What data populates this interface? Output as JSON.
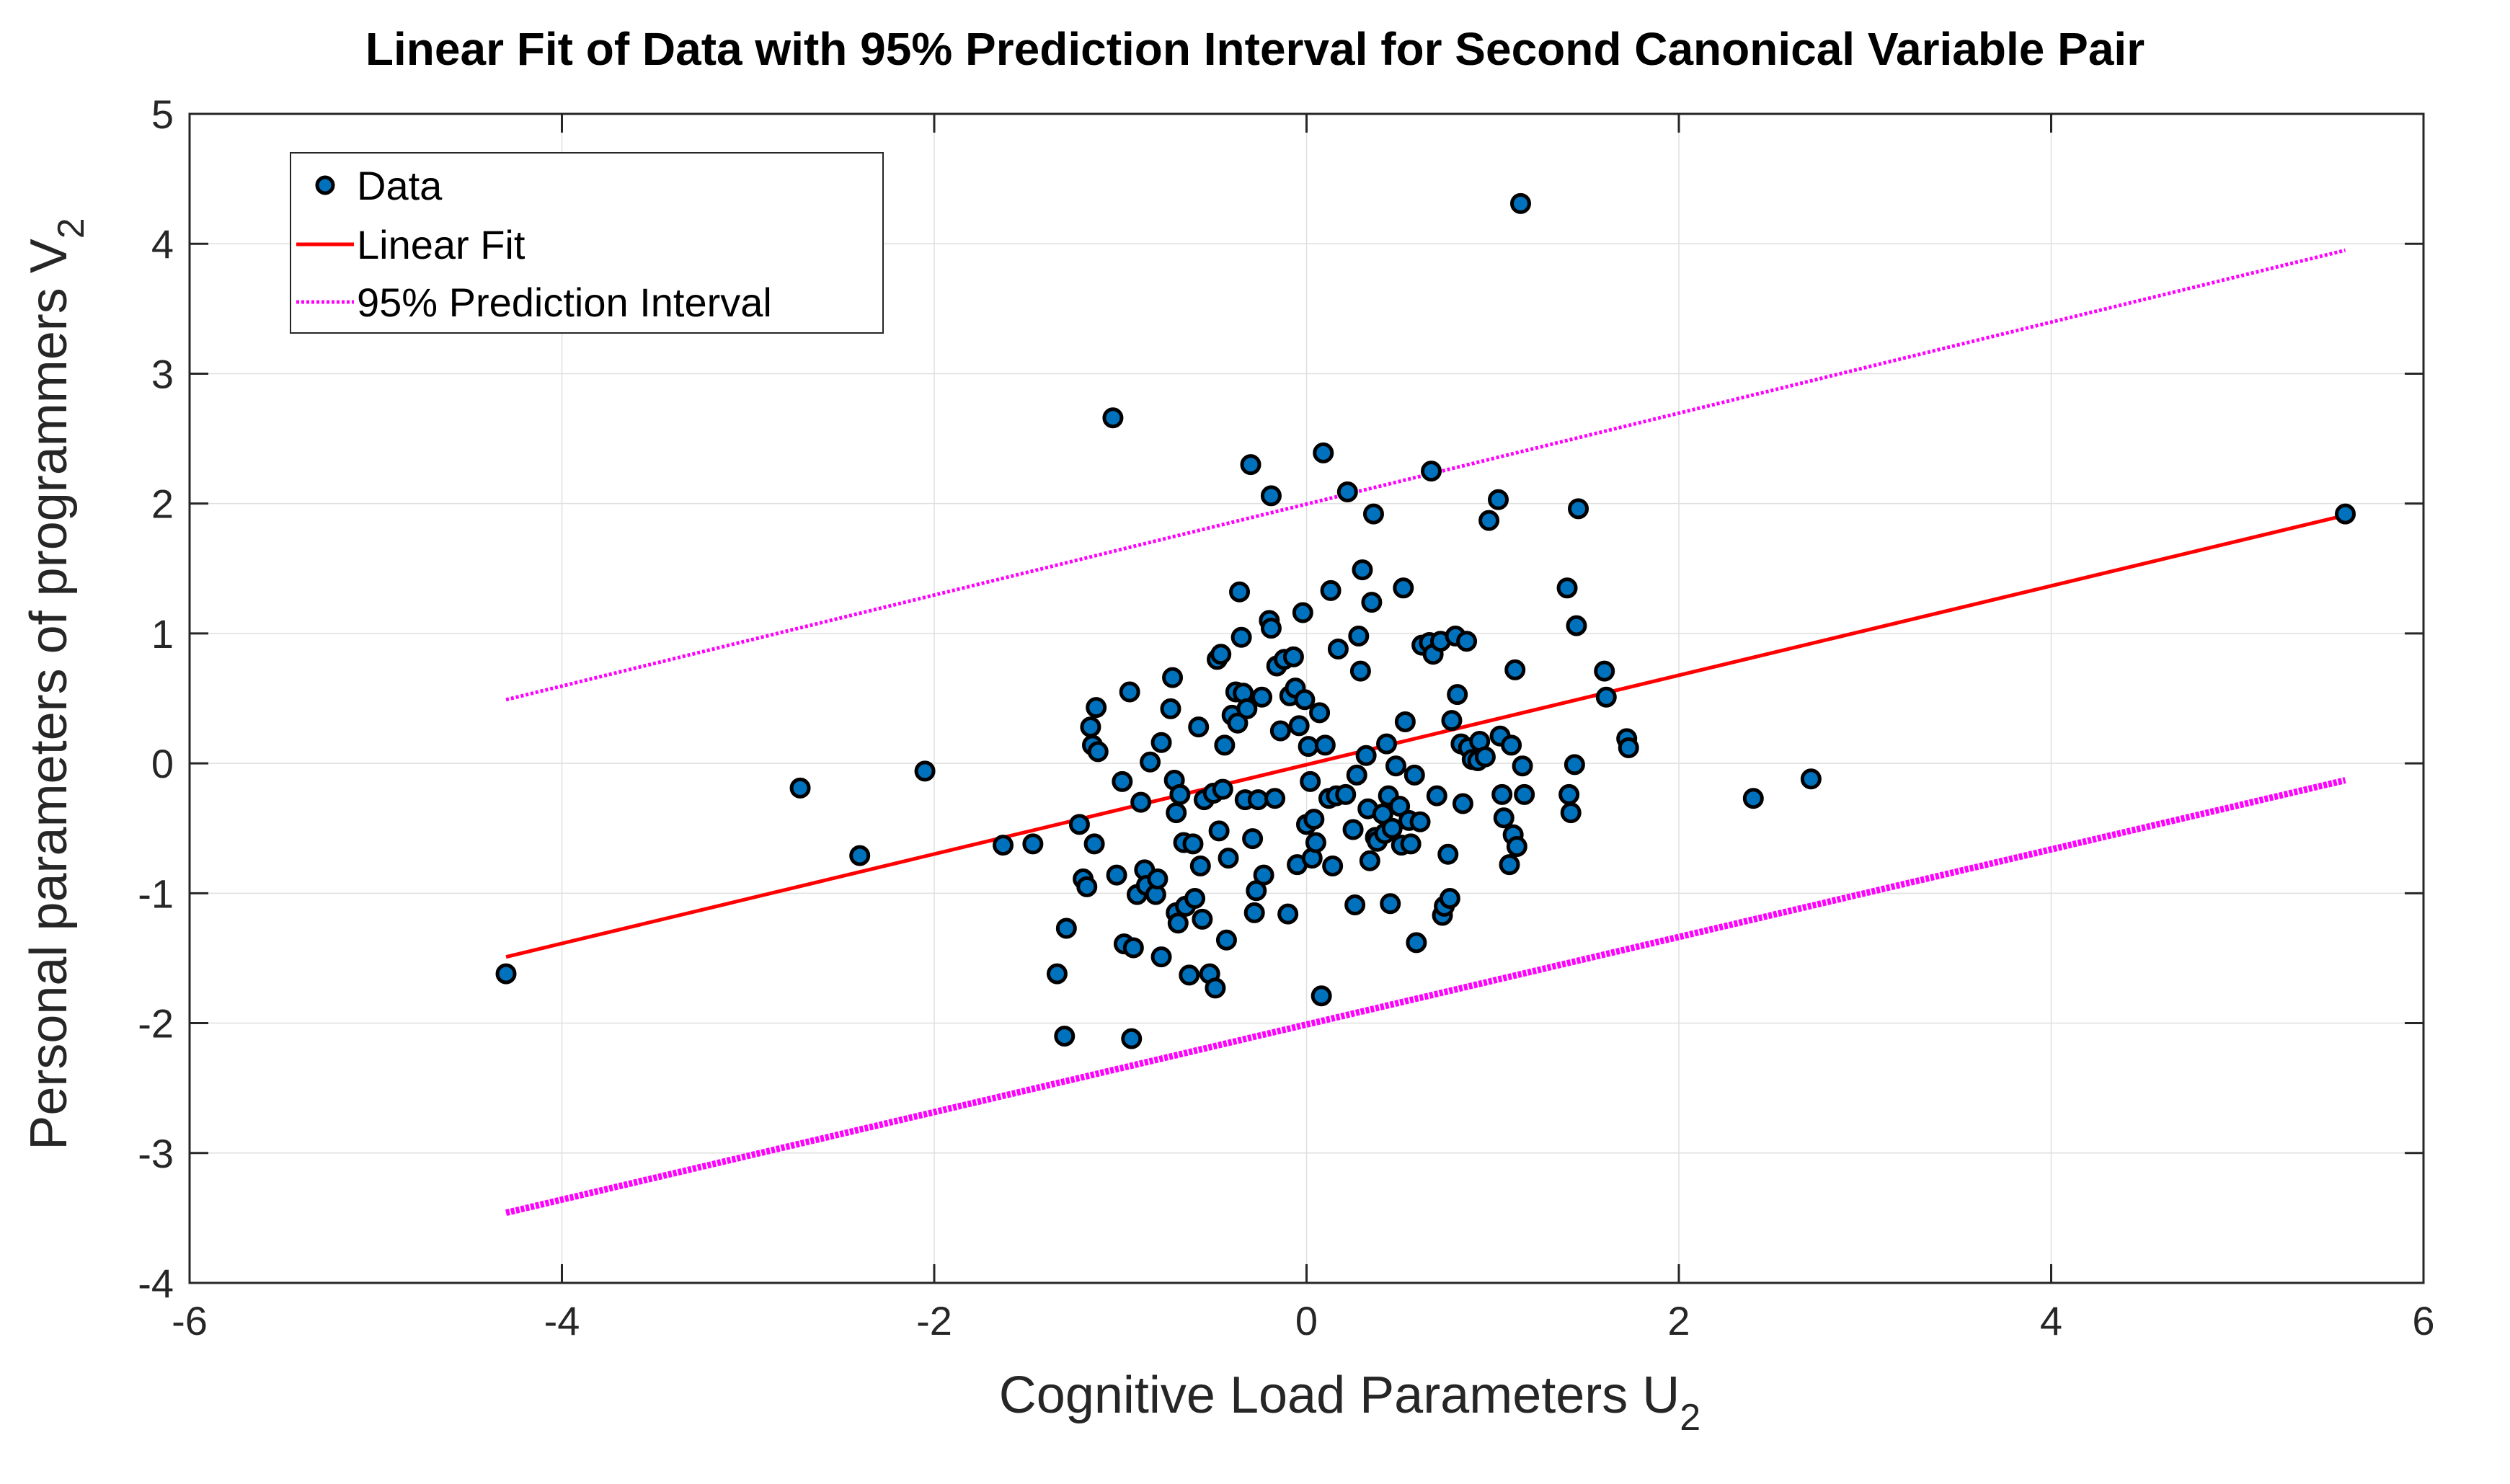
{
  "chart_data": {
    "type": "scatter",
    "title": "Linear Fit of Data with 95% Prediction Interval for Second Canonical Variable Pair",
    "xlabel": "Cognitive Load Parameters  U",
    "xlabel_subscript": "2",
    "ylabel": "Personal parameters of programmers  V",
    "ylabel_subscript": "2",
    "xlim": [
      -6,
      6
    ],
    "ylim": [
      -4,
      5
    ],
    "xticks": [
      "-6",
      "-4",
      "-2",
      "0",
      "2",
      "4",
      "6"
    ],
    "yticks": [
      "-4",
      "-3",
      "-2",
      "-1",
      "0",
      "1",
      "2",
      "3",
      "4",
      "5"
    ],
    "grid": true,
    "legend": {
      "location": "top-left",
      "entries": [
        "Data",
        "Linear Fit",
        "95% Prediction Interval"
      ]
    },
    "colors": {
      "data": "#0072BD",
      "data_edge": "#000000",
      "fit": "#FF0000",
      "interval": "#FF00FF"
    },
    "series": [
      {
        "name": "Data",
        "type": "scatter",
        "points": [
          [
            -4.3,
            -1.62
          ],
          [
            -2.72,
            -0.19
          ],
          [
            -2.4,
            -0.71
          ],
          [
            -2.05,
            -0.06
          ],
          [
            -1.63,
            -0.63
          ],
          [
            -1.47,
            -0.62
          ],
          [
            -1.34,
            -1.62
          ],
          [
            -1.3,
            -2.1
          ],
          [
            -1.29,
            -1.27
          ],
          [
            -1.22,
            -0.47
          ],
          [
            -1.2,
            -0.89
          ],
          [
            -1.18,
            -0.95
          ],
          [
            -1.16,
            0.28
          ],
          [
            -1.15,
            0.14
          ],
          [
            -1.14,
            -0.62
          ],
          [
            -1.13,
            0.43
          ],
          [
            -1.12,
            0.09
          ],
          [
            -1.04,
            2.66
          ],
          [
            -1.02,
            -0.86
          ],
          [
            -0.99,
            -0.14
          ],
          [
            -0.98,
            -1.39
          ],
          [
            -0.95,
            0.55
          ],
          [
            -0.94,
            -2.12
          ],
          [
            -0.93,
            -1.42
          ],
          [
            -0.91,
            -1.01
          ],
          [
            -0.89,
            -0.3
          ],
          [
            -0.87,
            -0.82
          ],
          [
            -0.86,
            -0.94
          ],
          [
            -0.84,
            0.01
          ],
          [
            -0.81,
            -1.01
          ],
          [
            -0.8,
            -0.89
          ],
          [
            -0.78,
            0.16
          ],
          [
            -0.78,
            -1.49
          ],
          [
            -0.73,
            0.42
          ],
          [
            -0.72,
            0.66
          ],
          [
            -0.71,
            -0.13
          ],
          [
            -0.7,
            -1.15
          ],
          [
            -0.7,
            -0.38
          ],
          [
            -0.69,
            -1.23
          ],
          [
            -0.68,
            -0.24
          ],
          [
            -0.66,
            -0.61
          ],
          [
            -0.65,
            -1.1
          ],
          [
            -0.63,
            -1.63
          ],
          [
            -0.61,
            -0.62
          ],
          [
            -0.6,
            -1.04
          ],
          [
            -0.58,
            0.28
          ],
          [
            -0.57,
            -0.79
          ],
          [
            -0.56,
            -1.2
          ],
          [
            -0.55,
            -0.28
          ],
          [
            -0.52,
            -1.62
          ],
          [
            -0.5,
            -0.23
          ],
          [
            -0.49,
            -1.73
          ],
          [
            -0.48,
            0.8
          ],
          [
            -0.47,
            -0.52
          ],
          [
            -0.46,
            0.84
          ],
          [
            -0.45,
            -0.2
          ],
          [
            -0.44,
            0.14
          ],
          [
            -0.43,
            -1.36
          ],
          [
            -0.42,
            -0.73
          ],
          [
            -0.4,
            0.37
          ],
          [
            -0.38,
            0.55
          ],
          [
            -0.37,
            0.31
          ],
          [
            -0.36,
            1.32
          ],
          [
            -0.35,
            0.97
          ],
          [
            -0.34,
            0.54
          ],
          [
            -0.33,
            -0.28
          ],
          [
            -0.32,
            0.42
          ],
          [
            -0.3,
            2.3
          ],
          [
            -0.29,
            -0.58
          ],
          [
            -0.28,
            -1.15
          ],
          [
            -0.27,
            -0.98
          ],
          [
            -0.26,
            -0.28
          ],
          [
            -0.24,
            0.51
          ],
          [
            -0.23,
            -0.86
          ],
          [
            -0.2,
            1.1
          ],
          [
            -0.19,
            1.04
          ],
          [
            -0.19,
            2.06
          ],
          [
            -0.17,
            -0.27
          ],
          [
            -0.16,
            0.75
          ],
          [
            -0.14,
            0.25
          ],
          [
            -0.12,
            0.8
          ],
          [
            -0.1,
            -1.16
          ],
          [
            -0.09,
            0.52
          ],
          [
            -0.07,
            0.82
          ],
          [
            -0.06,
            0.58
          ],
          [
            -0.05,
            -0.78
          ],
          [
            -0.04,
            0.29
          ],
          [
            -0.02,
            1.16
          ],
          [
            -0.01,
            0.49
          ],
          [
            0.0,
            -0.47
          ],
          [
            0.01,
            0.13
          ],
          [
            0.02,
            -0.14
          ],
          [
            0.03,
            -0.73
          ],
          [
            0.04,
            -0.43
          ],
          [
            0.05,
            -0.61
          ],
          [
            0.07,
            0.39
          ],
          [
            0.08,
            -1.79
          ],
          [
            0.09,
            2.39
          ],
          [
            0.1,
            0.14
          ],
          [
            0.12,
            -0.27
          ],
          [
            0.13,
            1.33
          ],
          [
            0.14,
            -0.79
          ],
          [
            0.16,
            -0.25
          ],
          [
            0.17,
            0.88
          ],
          [
            0.21,
            -0.24
          ],
          [
            0.22,
            2.09
          ],
          [
            0.25,
            -0.51
          ],
          [
            0.26,
            -1.09
          ],
          [
            0.27,
            -0.09
          ],
          [
            0.28,
            0.98
          ],
          [
            0.29,
            0.71
          ],
          [
            0.3,
            1.49
          ],
          [
            0.32,
            0.06
          ],
          [
            0.33,
            -0.35
          ],
          [
            0.34,
            -0.75
          ],
          [
            0.35,
            1.24
          ],
          [
            0.36,
            1.92
          ],
          [
            0.37,
            -0.57
          ],
          [
            0.38,
            -0.6
          ],
          [
            0.41,
            -0.39
          ],
          [
            0.42,
            -0.54
          ],
          [
            0.43,
            0.15
          ],
          [
            0.44,
            -0.25
          ],
          [
            0.45,
            -1.08
          ],
          [
            0.46,
            -0.5
          ],
          [
            0.48,
            -0.02
          ],
          [
            0.5,
            -0.33
          ],
          [
            0.51,
            -0.63
          ],
          [
            0.52,
            1.35
          ],
          [
            0.53,
            0.32
          ],
          [
            0.55,
            -0.44
          ],
          [
            0.56,
            -0.62
          ],
          [
            0.58,
            -0.09
          ],
          [
            0.59,
            -1.38
          ],
          [
            0.61,
            -0.45
          ],
          [
            0.62,
            0.91
          ],
          [
            0.66,
            0.93
          ],
          [
            0.67,
            2.25
          ],
          [
            0.68,
            0.84
          ],
          [
            0.7,
            -0.25
          ],
          [
            0.72,
            0.94
          ],
          [
            0.73,
            -1.17
          ],
          [
            0.74,
            -1.1
          ],
          [
            0.76,
            -0.7
          ],
          [
            0.77,
            -1.04
          ],
          [
            0.78,
            0.33
          ],
          [
            0.8,
            0.98
          ],
          [
            0.81,
            0.53
          ],
          [
            0.83,
            0.15
          ],
          [
            0.84,
            -0.31
          ],
          [
            0.86,
            0.94
          ],
          [
            0.87,
            0.12
          ],
          [
            0.89,
            0.03
          ],
          [
            0.92,
            0.02
          ],
          [
            0.93,
            0.17
          ],
          [
            0.96,
            0.05
          ],
          [
            0.98,
            1.87
          ],
          [
            1.03,
            2.03
          ],
          [
            1.04,
            0.21
          ],
          [
            1.05,
            -0.24
          ],
          [
            1.06,
            -0.42
          ],
          [
            1.09,
            -0.78
          ],
          [
            1.1,
            0.14
          ],
          [
            1.11,
            -0.55
          ],
          [
            1.12,
            0.72
          ],
          [
            1.13,
            -0.64
          ],
          [
            1.15,
            4.31
          ],
          [
            1.16,
            -0.02
          ],
          [
            1.17,
            -0.24
          ],
          [
            1.4,
            1.35
          ],
          [
            1.41,
            -0.24
          ],
          [
            1.42,
            -0.38
          ],
          [
            1.44,
            -0.01
          ],
          [
            1.45,
            1.06
          ],
          [
            1.46,
            1.96
          ],
          [
            1.6,
            0.71
          ],
          [
            1.61,
            0.51
          ],
          [
            1.72,
            0.19
          ],
          [
            1.73,
            0.12
          ],
          [
            2.4,
            -0.27
          ],
          [
            2.71,
            -0.12
          ],
          [
            5.58,
            1.92
          ]
        ]
      },
      {
        "name": "Linear Fit",
        "type": "line",
        "x": [
          -4.3,
          5.58
        ],
        "y": [
          -1.49,
          1.91
        ]
      },
      {
        "name": "95% Prediction Interval",
        "type": "line",
        "upper": {
          "x": [
            -4.3,
            5.58
          ],
          "y": [
            0.49,
            3.95
          ]
        },
        "lower": {
          "x": [
            -4.3,
            5.58
          ],
          "y": [
            -3.46,
            -0.13
          ]
        }
      }
    ]
  }
}
